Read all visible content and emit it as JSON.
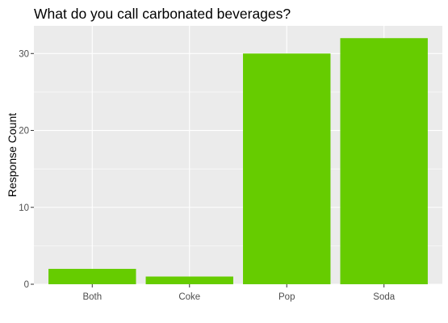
{
  "chart_data": {
    "type": "bar",
    "title": "What do you call carbonated beverages?",
    "xlabel": "",
    "ylabel": "Response Count",
    "categories": [
      "Both",
      "Coke",
      "Pop",
      "Soda"
    ],
    "values": [
      2,
      1,
      30,
      32
    ],
    "ylim": [
      0,
      33.6
    ],
    "yticks": [
      0,
      10,
      20,
      30
    ],
    "grid": true,
    "legend": "none",
    "colors": {
      "bar": "#66cc00",
      "panel": "#ebebeb",
      "grid_major": "#ffffff",
      "tick_label": "#4d4d4d"
    }
  }
}
